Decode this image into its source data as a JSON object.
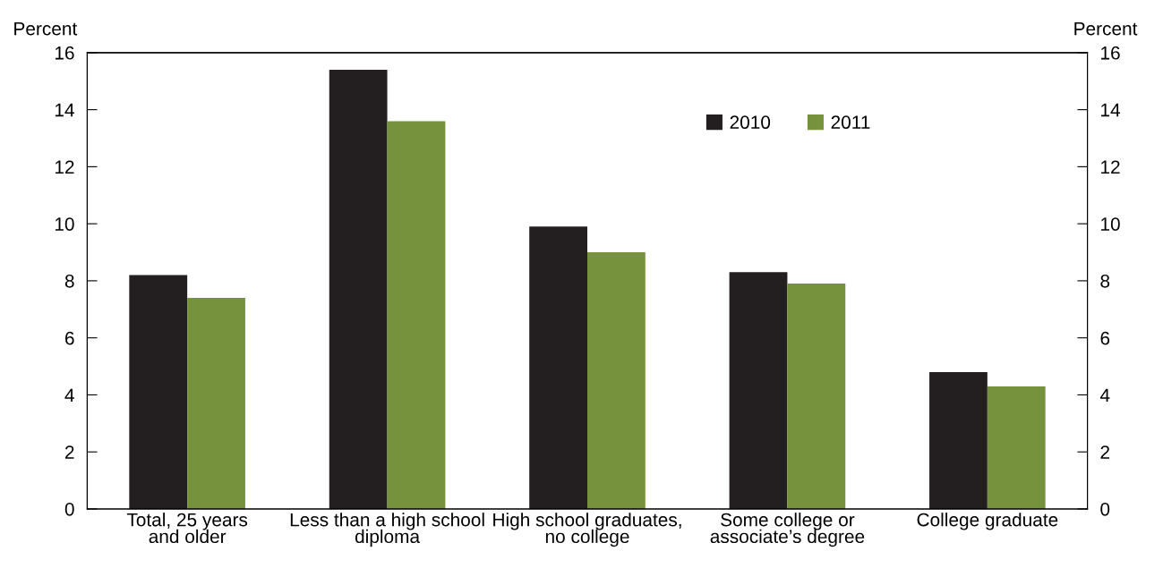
{
  "chart_data": {
    "type": "bar",
    "categories": [
      "Total, 25 years\nand older",
      "Less than a high school\ndiploma",
      "High school graduates,\nno college",
      "Some college or\nassociate’s degree",
      "College graduate"
    ],
    "series": [
      {
        "name": "2010",
        "color": "#231f20",
        "values": [
          8.2,
          15.4,
          9.9,
          8.3,
          4.8
        ]
      },
      {
        "name": "2011",
        "color": "#76923c",
        "values": [
          7.4,
          13.6,
          9.0,
          7.9,
          4.3
        ]
      }
    ],
    "ylabel": "Percent",
    "y2label": "Percent",
    "ylim": [
      0,
      16
    ],
    "yticks": [
      0,
      2,
      4,
      6,
      8,
      10,
      12,
      14,
      16
    ],
    "y2lim": [
      0,
      16
    ],
    "y2ticks": [
      0,
      2,
      4,
      6,
      8,
      10,
      12,
      14,
      16
    ],
    "grid": false,
    "legend": "top right"
  }
}
